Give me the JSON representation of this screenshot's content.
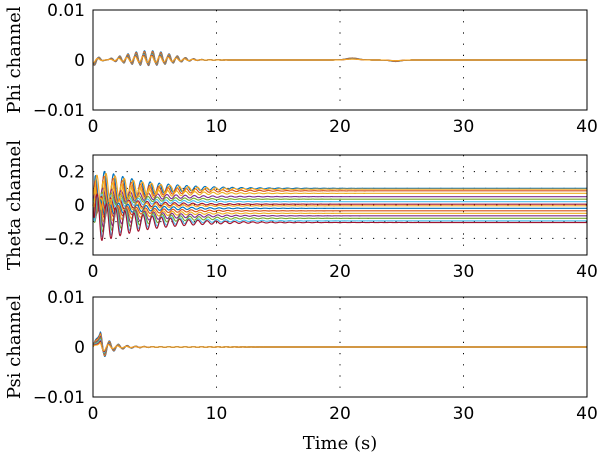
{
  "chart_data": [
    {
      "type": "line",
      "ylabel": "Phi channel",
      "xlabel": "",
      "xlim": [
        0,
        40
      ],
      "ylim": [
        -0.01,
        0.01
      ],
      "xticks": [
        "0",
        "10",
        "20",
        "30",
        "40"
      ],
      "yticks": [
        {
          "value": 0.01,
          "label": "0.01"
        },
        {
          "value": 0,
          "label": "0"
        },
        {
          "value": -0.01,
          "label": "−0.01"
        }
      ],
      "grid": "dotted vertical at x = 10, 20, 30",
      "series_count": 8,
      "series_colors": [
        "#0072bd",
        "#d95319",
        "#edb120",
        "#7e2f8e",
        "#77ac30",
        "#4dbeee",
        "#a2142f",
        "#f5a623"
      ],
      "description_values": {
        "initial_dip": -0.0015,
        "burst_peak": 0.0015,
        "burst_center_s": 5,
        "bump_at_s": 21
      }
    },
    {
      "type": "line",
      "ylabel": "Theta channel",
      "xlabel": "",
      "xlim": [
        0,
        40
      ],
      "ylim": [
        -0.3,
        0.3
      ],
      "xticks": [
        "0",
        "10",
        "20",
        "30",
        "40"
      ],
      "yticks": [
        {
          "value": 0.2,
          "label": "0.2"
        },
        {
          "value": 0,
          "label": "0"
        },
        {
          "value": -0.2,
          "label": "−0.2"
        }
      ],
      "grid": "dotted vertical at x = 10, 20, 30; dotted horizontal at y = 0.2, 0.1, 0, -0.1, -0.2",
      "series_steady_values": [
        0.1,
        0.085,
        0.07,
        0.05,
        0.035,
        0.02,
        0.005,
        -0.005,
        -0.02,
        -0.035,
        -0.05,
        -0.065,
        -0.08,
        -0.095,
        -0.105,
        0.095
      ],
      "series_colors": [
        "#0072bd",
        "#d95319",
        "#edb120",
        "#7e2f8e",
        "#77ac30",
        "#4dbeee",
        "#a2142f",
        "#f5a623",
        "#0072bd",
        "#d95319",
        "#edb120",
        "#7e2f8e",
        "#77ac30",
        "#4dbeee",
        "#a2142f",
        "#f5a623"
      ]
    },
    {
      "type": "line",
      "ylabel": "Psi channel",
      "xlabel": "Time (s)",
      "xlim": [
        0,
        40
      ],
      "ylim": [
        -0.01,
        0.01
      ],
      "xticks": [
        "0",
        "10",
        "20",
        "30",
        "40"
      ],
      "yticks": [
        {
          "value": 0.01,
          "label": "0.01"
        },
        {
          "value": 0,
          "label": "0"
        },
        {
          "value": -0.01,
          "label": "−0.01"
        }
      ],
      "grid": "dotted vertical at x = 10, 20, 30",
      "series_count": 8,
      "series_colors": [
        "#0072bd",
        "#d95319",
        "#edb120",
        "#7e2f8e",
        "#77ac30",
        "#4dbeee",
        "#a2142f",
        "#f5a623"
      ],
      "description_values": {
        "initial_peak": 0.003,
        "peak_time_s": 0.6
      }
    }
  ]
}
